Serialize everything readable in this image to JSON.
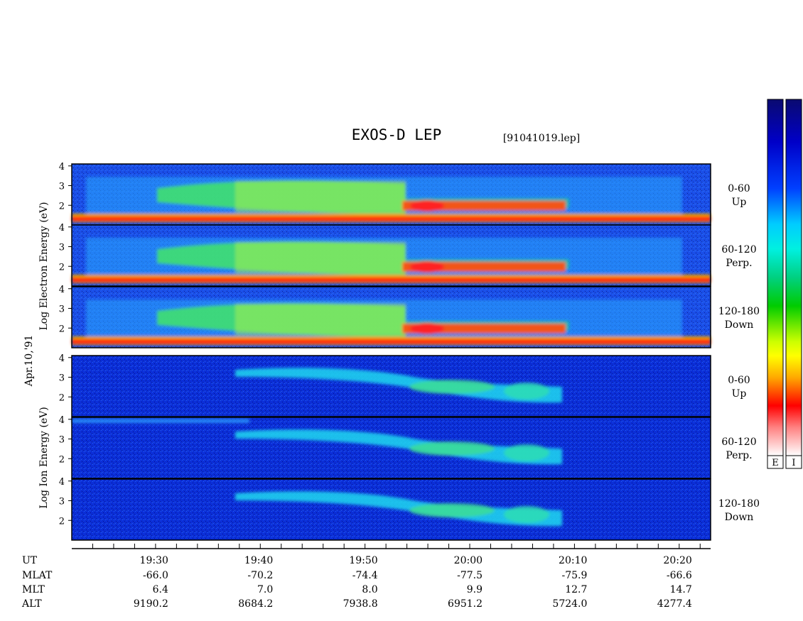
{
  "chart_data": {
    "type": "heatmap",
    "title": "EXOS-D LEP",
    "file": "[91041019.lep]",
    "date_label": "Apr.10,'91",
    "electron_ylabel": [
      "Log",
      "Electron",
      "Energy",
      "(eV)"
    ],
    "ion_ylabel": [
      "Log",
      "Ion",
      "Energy",
      "(eV)"
    ],
    "y_ticks": [
      "4",
      "3",
      "2"
    ],
    "y_range": [
      1,
      4.1
    ],
    "panels": [
      {
        "species": "Electron",
        "band": "0-60",
        "dir": "Up"
      },
      {
        "species": "Electron",
        "band": "60-120",
        "dir": "Perp."
      },
      {
        "species": "Electron",
        "band": "120-180",
        "dir": "Down"
      },
      {
        "species": "Ion",
        "band": "0-60",
        "dir": "Up"
      },
      {
        "species": "Ion",
        "band": "60-120",
        "dir": "Perp."
      },
      {
        "species": "Ion",
        "band": "120-180",
        "dir": "Down"
      }
    ],
    "colorbars": [
      "E",
      "I"
    ],
    "x_range_ut": [
      "19:22",
      "20:23"
    ],
    "time_rows": [
      {
        "label": "UT",
        "values": [
          "19:30",
          "19:40",
          "19:50",
          "20:00",
          "20:10",
          "20:20"
        ]
      },
      {
        "label": "MLAT",
        "values": [
          "-66.0",
          "-70.2",
          "-74.4",
          "-77.5",
          "-75.9",
          "-66.6"
        ]
      },
      {
        "label": "MLT",
        "values": [
          "6.4",
          "7.0",
          "8.0",
          "9.9",
          "12.7",
          "14.7"
        ]
      },
      {
        "label": "ALT",
        "values": [
          "9190.2",
          "8684.2",
          "7938.8",
          "6951.2",
          "5724.0",
          "4277.4"
        ]
      }
    ]
  }
}
